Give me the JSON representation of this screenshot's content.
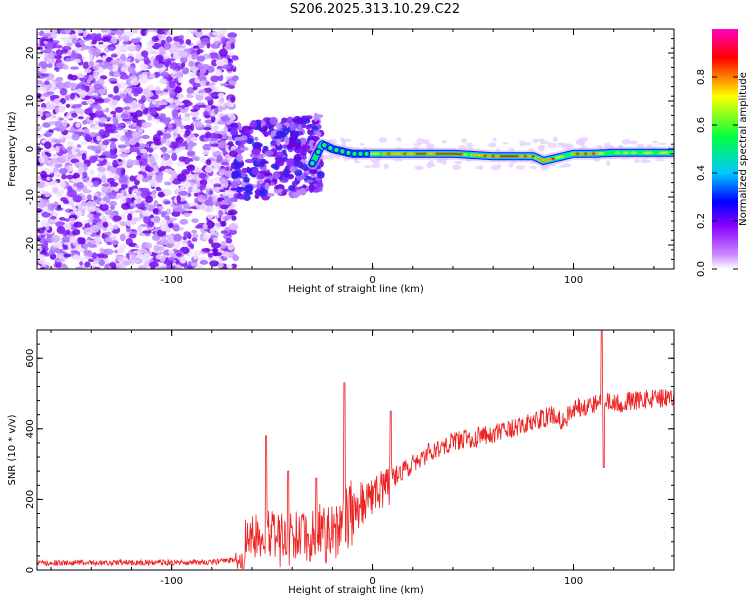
{
  "title": "S206.2025.313.10.29.C22",
  "chart_data": [
    {
      "type": "heatmap",
      "name": "spectrogram",
      "xlabel": "Height of straight line (km)",
      "ylabel": "Frequency (Hz)",
      "xlim": [
        -167,
        150
      ],
      "ylim": [
        -25,
        25
      ],
      "x_ticks": [
        -100,
        0,
        100
      ],
      "y_ticks": [
        -20,
        -10,
        0,
        10,
        20
      ],
      "colorbar": {
        "label": "Normalized spectral amplitude",
        "ticks": [
          "0.0",
          "0.2",
          "0.4",
          "0.6",
          "0.8"
        ],
        "range": [
          0,
          1
        ],
        "colors": [
          "#ffffff",
          "#8800ff",
          "#0000ff",
          "#00c8ff",
          "#00ff40",
          "#ffff00",
          "#ff0000",
          "#ff00c0"
        ]
      },
      "ridge": {
        "description": "dominant frequency line",
        "x": [
          -30,
          -25,
          -20,
          -10,
          0,
          20,
          40,
          60,
          80,
          85,
          90,
          100,
          110,
          120,
          150
        ],
        "y": [
          -3,
          1,
          0,
          -1,
          -1,
          -1,
          -1,
          -1.5,
          -1.5,
          -2.5,
          -2,
          -1,
          -1,
          -0.8,
          -0.8
        ]
      }
    },
    {
      "type": "line",
      "name": "snr",
      "xlabel": "Height of straight line (km)",
      "ylabel": "SNR (10 * v/v)",
      "xlim": [
        -167,
        150
      ],
      "ylim": [
        0,
        680
      ],
      "x_ticks": [
        -100,
        0,
        100
      ],
      "y_ticks": [
        0,
        200,
        400,
        600
      ],
      "color": "#ee2222",
      "trend": {
        "x": [
          -167,
          -80,
          -65,
          -60,
          -50,
          -40,
          -30,
          -20,
          -10,
          0,
          10,
          20,
          30,
          40,
          50,
          60,
          70,
          80,
          90,
          95,
          100,
          110,
          115,
          120,
          130,
          140,
          150
        ],
        "y": [
          20,
          22,
          30,
          110,
          100,
          90,
          110,
          100,
          160,
          210,
          260,
          300,
          340,
          365,
          375,
          385,
          400,
          420,
          440,
          420,
          460,
          470,
          480,
          470,
          480,
          485,
          485
        ]
      },
      "spikes": [
        {
          "x": -53,
          "y": 380
        },
        {
          "x": -42,
          "y": 280
        },
        {
          "x": -28,
          "y": 260
        },
        {
          "x": -14,
          "y": 530
        },
        {
          "x": 9,
          "y": 450
        },
        {
          "x": 114,
          "y": 680
        },
        {
          "x": 115,
          "y": 290
        }
      ]
    }
  ]
}
